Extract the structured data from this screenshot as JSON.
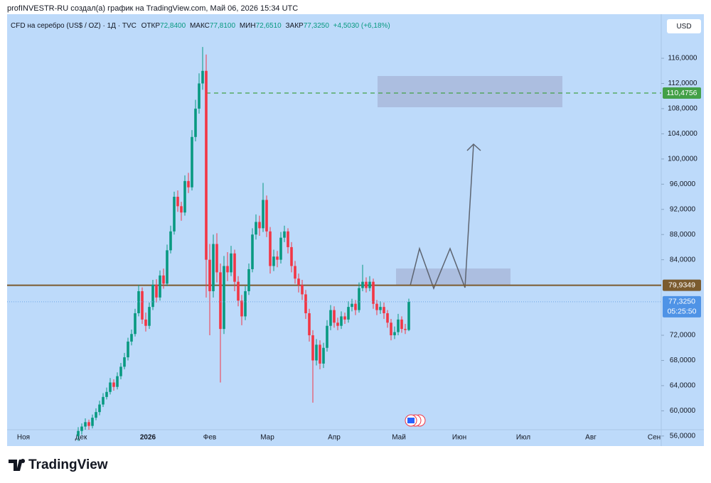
{
  "header": "profINVESTR-RU создал(а) график на TradingView.com, Май 06, 2026 15:34 UTC",
  "chart_data": {
    "type": "candlestick",
    "legend": {
      "symbol": "CFD на серебро (US$ / OZ) · 1Д · TVC",
      "open_label": "ОТКР",
      "open": "72,8400",
      "high_label": "МАКС",
      "high": "77,8100",
      "low_label": "МИН",
      "low": "72,6510",
      "close_label": "ЗАКР",
      "close": "77,3250",
      "change": "+4,5030 (+6,18%)"
    },
    "currency": "USD",
    "up_color": "#089981",
    "down_color": "#f23645",
    "ylim": [
      54.4,
      123.0
    ],
    "yticks": [
      {
        "value": 56,
        "label": "56,0000"
      },
      {
        "value": 60,
        "label": "60,0000"
      },
      {
        "value": 64,
        "label": "64,0000"
      },
      {
        "value": 68,
        "label": "68,0000"
      },
      {
        "value": 72,
        "label": "72,0000"
      },
      {
        "value": 84,
        "label": "84,0000"
      },
      {
        "value": 88,
        "label": "88,0000"
      },
      {
        "value": 92,
        "label": "92,0000"
      },
      {
        "value": 96,
        "label": "96,0000"
      },
      {
        "value": 100,
        "label": "100,0000"
      },
      {
        "value": 104,
        "label": "104,0000"
      },
      {
        "value": 108,
        "label": "108,0000"
      },
      {
        "value": 112,
        "label": "112,0000"
      },
      {
        "value": 116,
        "label": "116,0000"
      }
    ],
    "grid": false,
    "x_labels": [
      "Ноя",
      "Дек",
      "2026",
      "Фев",
      "Мар",
      "Апр",
      "Май",
      "Июн",
      "Июл",
      "Авг",
      "Сен"
    ],
    "levels": [
      {
        "value": 110.4756,
        "label": "110,4756",
        "color": "#43a047",
        "style": "dashed"
      },
      {
        "value": 79.9349,
        "label": "79,9349",
        "color": "#7b5b2e",
        "style": "solid"
      }
    ],
    "last_price_label": "77,3250",
    "countdown": "05:25:50",
    "candles": [
      [
        56.0,
        57.4,
        55.2,
        56.8
      ],
      [
        56.8,
        58.0,
        56.2,
        57.5
      ],
      [
        57.5,
        58.8,
        57.0,
        58.2
      ],
      [
        58.2,
        58.6,
        57.0,
        57.6
      ],
      [
        57.6,
        59.4,
        57.2,
        58.9
      ],
      [
        58.9,
        60.4,
        58.5,
        59.8
      ],
      [
        59.8,
        61.6,
        59.3,
        61.0
      ],
      [
        61.0,
        62.8,
        60.6,
        62.2
      ],
      [
        62.2,
        63.7,
        61.8,
        63.0
      ],
      [
        63.0,
        65.2,
        62.6,
        64.5
      ],
      [
        64.5,
        65.0,
        63.2,
        63.8
      ],
      [
        63.8,
        66.1,
        63.4,
        65.5
      ],
      [
        65.5,
        67.6,
        65.0,
        67.0
      ],
      [
        67.0,
        69.2,
        66.6,
        68.5
      ],
      [
        68.5,
        71.6,
        68.0,
        71.0
      ],
      [
        71.0,
        72.9,
        70.4,
        72.2
      ],
      [
        72.2,
        76.2,
        71.8,
        75.5
      ],
      [
        75.5,
        80.0,
        75.0,
        79.0
      ],
      [
        79.0,
        79.6,
        73.8,
        74.5
      ],
      [
        74.5,
        75.6,
        72.6,
        73.5
      ],
      [
        73.5,
        77.2,
        73.0,
        76.5
      ],
      [
        76.5,
        80.8,
        76.0,
        80.0
      ],
      [
        80.0,
        80.9,
        77.2,
        78.0
      ],
      [
        78.0,
        82.3,
        77.5,
        81.5
      ],
      [
        81.5,
        82.6,
        79.4,
        80.2
      ],
      [
        80.2,
        86.4,
        79.8,
        85.5
      ],
      [
        85.5,
        89.4,
        85.0,
        88.5
      ],
      [
        88.5,
        94.8,
        88.0,
        94.0
      ],
      [
        94.0,
        95.0,
        91.6,
        92.5
      ],
      [
        92.5,
        93.2,
        90.2,
        91.5
      ],
      [
        91.5,
        97.4,
        91.0,
        96.5
      ],
      [
        96.5,
        97.8,
        94.6,
        95.5
      ],
      [
        95.5,
        104.6,
        95.0,
        103.5
      ],
      [
        103.5,
        109.4,
        102.8,
        108.0
      ],
      [
        108.0,
        113.6,
        107.2,
        112.0
      ],
      [
        112.0,
        117.8,
        111.0,
        114.0
      ],
      [
        114.0,
        116.6,
        78.0,
        84.0
      ],
      [
        84.0,
        86.5,
        72.0,
        79.0
      ],
      [
        79.0,
        88.0,
        78.0,
        86.5
      ],
      [
        86.5,
        88.2,
        80.4,
        82.0
      ],
      [
        82.0,
        83.4,
        64.5,
        73.0
      ],
      [
        73.0,
        84.6,
        72.2,
        83.0
      ],
      [
        83.0,
        85.2,
        80.6,
        82.0
      ],
      [
        82.0,
        86.2,
        81.4,
        85.0
      ],
      [
        85.0,
        85.6,
        79.0,
        80.5
      ],
      [
        80.5,
        81.4,
        76.6,
        77.5
      ],
      [
        77.5,
        78.4,
        73.6,
        75.0
      ],
      [
        75.0,
        79.8,
        74.4,
        79.0
      ],
      [
        79.0,
        83.4,
        78.4,
        82.5
      ],
      [
        82.5,
        89.0,
        82.0,
        88.0
      ],
      [
        88.0,
        91.2,
        87.2,
        90.0
      ],
      [
        90.0,
        91.0,
        87.8,
        89.0
      ],
      [
        89.0,
        96.2,
        88.4,
        93.5
      ],
      [
        93.5,
        94.2,
        87.6,
        88.5
      ],
      [
        88.5,
        89.2,
        81.8,
        83.0
      ],
      [
        83.0,
        85.6,
        82.2,
        84.5
      ],
      [
        84.5,
        85.4,
        82.8,
        84.0
      ],
      [
        84.0,
        88.4,
        83.4,
        87.5
      ],
      [
        87.5,
        89.4,
        86.8,
        88.5
      ],
      [
        88.5,
        89.0,
        85.0,
        86.0
      ],
      [
        86.0,
        86.8,
        82.0,
        83.0
      ],
      [
        83.0,
        83.8,
        80.2,
        81.0
      ],
      [
        81.0,
        81.8,
        78.8,
        80.0
      ],
      [
        80.0,
        80.8,
        77.6,
        78.5
      ],
      [
        78.5,
        79.2,
        74.6,
        75.5
      ],
      [
        75.5,
        76.2,
        71.0,
        72.0
      ],
      [
        72.0,
        72.8,
        61.3,
        68.0
      ],
      [
        68.0,
        71.4,
        67.2,
        70.5
      ],
      [
        70.5,
        71.2,
        66.6,
        67.5
      ],
      [
        67.5,
        70.8,
        66.8,
        70.0
      ],
      [
        70.0,
        74.4,
        69.4,
        73.5
      ],
      [
        73.5,
        76.8,
        72.8,
        76.0
      ],
      [
        76.0,
        76.6,
        73.2,
        74.0
      ],
      [
        74.0,
        74.8,
        72.8,
        73.5
      ],
      [
        73.5,
        75.8,
        73.0,
        75.0
      ],
      [
        75.0,
        75.6,
        73.8,
        74.5
      ],
      [
        74.5,
        77.4,
        74.0,
        76.5
      ],
      [
        76.5,
        77.8,
        75.8,
        77.0
      ],
      [
        77.0,
        77.6,
        75.2,
        76.0
      ],
      [
        76.0,
        80.4,
        75.6,
        79.5
      ],
      [
        79.5,
        83.2,
        79.0,
        80.5
      ],
      [
        80.5,
        81.2,
        78.8,
        79.5
      ],
      [
        79.5,
        81.4,
        79.0,
        80.5
      ],
      [
        80.5,
        81.0,
        76.2,
        77.0
      ],
      [
        77.0,
        77.6,
        75.2,
        76.0
      ],
      [
        76.0,
        77.4,
        75.4,
        76.5
      ],
      [
        76.5,
        77.2,
        74.6,
        75.5
      ],
      [
        75.5,
        76.0,
        73.2,
        74.0
      ],
      [
        74.0,
        74.6,
        71.2,
        72.0
      ],
      [
        72.0,
        73.4,
        71.4,
        72.5
      ],
      [
        72.5,
        75.4,
        72.0,
        74.5
      ],
      [
        74.5,
        75.0,
        72.4,
        73.0
      ],
      [
        73.0,
        73.8,
        72.2,
        72.84
      ],
      [
        72.84,
        77.81,
        72.651,
        77.325
      ]
    ]
  },
  "footer": {
    "brand": "TradingView"
  }
}
